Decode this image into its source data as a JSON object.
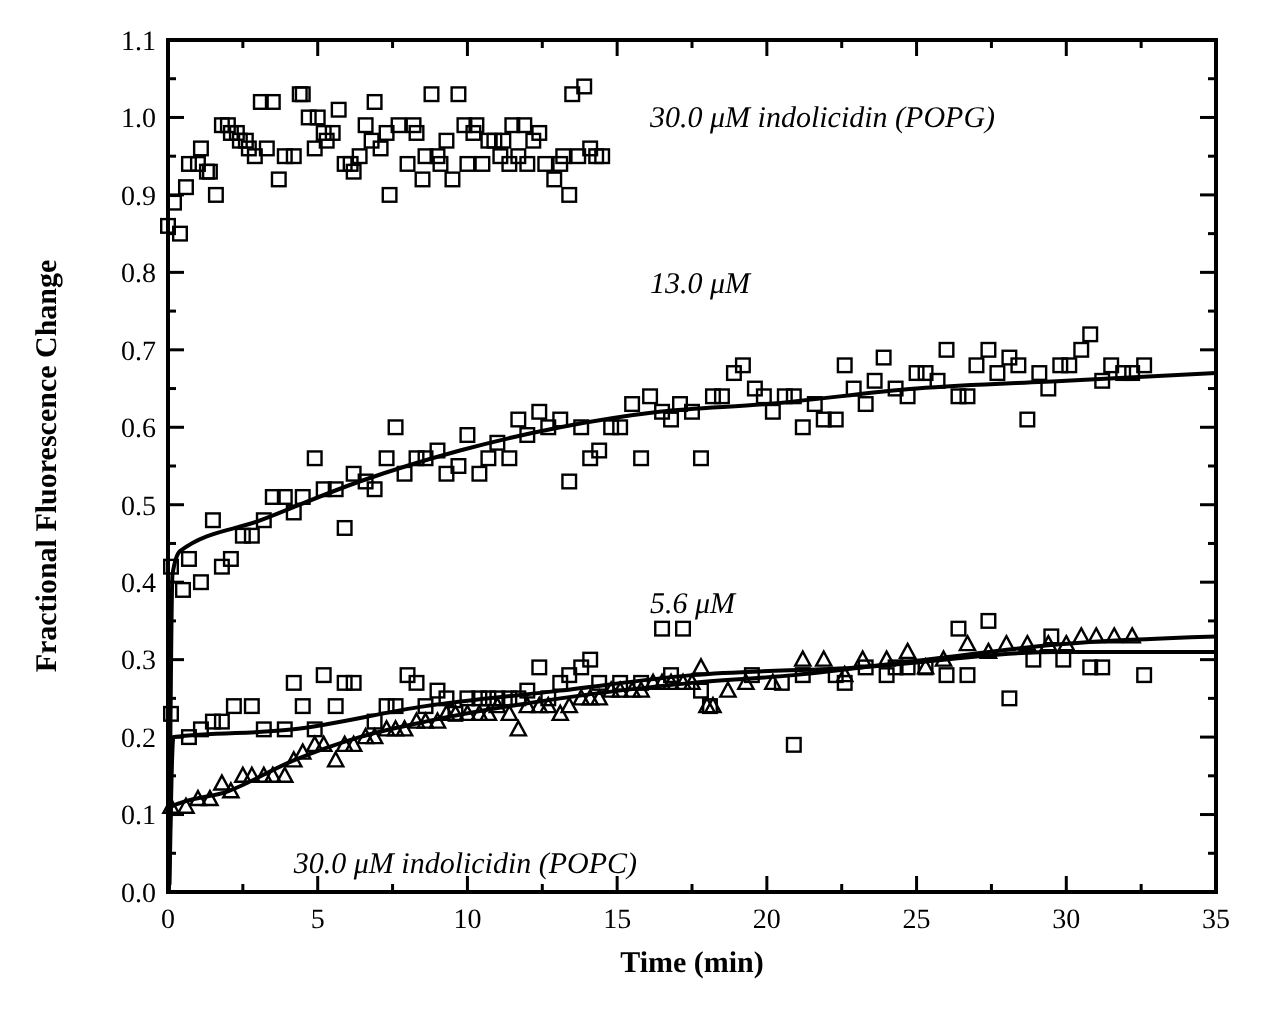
{
  "chart_data": {
    "type": "scatter",
    "xlabel": "Time (min)",
    "ylabel": "Fractional Fluorescence Change",
    "xlim": [
      0,
      35
    ],
    "ylim": [
      0,
      1.1
    ],
    "xticks": [
      0,
      {
        "value": 2.5,
        "label": null
      },
      5,
      {
        "value": 7.5,
        "label": null
      },
      10,
      {
        "value": 12.5,
        "label": null
      },
      15,
      {
        "value": 17.5,
        "label": null
      },
      20,
      {
        "value": 22.5,
        "label": null
      },
      25,
      {
        "value": 27.5,
        "label": null
      },
      30,
      {
        "value": 32.5,
        "label": null
      },
      35
    ],
    "yticks": [
      {
        "value": 0,
        "label": "0.0"
      },
      {
        "value": 0.05,
        "label": null
      },
      0.1,
      {
        "value": 0.15,
        "label": null
      },
      0.2,
      {
        "value": 0.25,
        "label": null
      },
      0.3,
      {
        "value": 0.35,
        "label": null
      },
      0.4,
      {
        "value": 0.45,
        "label": null
      },
      0.5,
      {
        "value": 0.55,
        "label": null
      },
      0.6,
      {
        "value": 0.65,
        "label": null
      },
      0.7,
      {
        "value": 0.75,
        "label": null
      },
      0.8,
      {
        "value": 0.85,
        "label": null
      },
      0.9,
      {
        "value": 0.95,
        "label": null
      },
      {
        "value": 1,
        "label": "1.0"
      },
      {
        "value": 1.05,
        "label": null
      },
      1.1
    ],
    "grid": false,
    "annotations": [
      "30.0 μM indolicidin (POPG)",
      "13.0 μM",
      "5.6 μM",
      "30.0 μM indolicidin (POPC)"
    ],
    "series": [
      {
        "marker": "square",
        "color": "#000000",
        "x": [
          0.0,
          0.4,
          0.2,
          0.6,
          0.7,
          1.0,
          1.1,
          1.3,
          1.4,
          1.6,
          1.8,
          2.0,
          2.1,
          2.3,
          2.4,
          2.6,
          2.7,
          2.9,
          3.1,
          3.3,
          3.5,
          3.7,
          3.9,
          4.2,
          4.4,
          4.5,
          4.7,
          4.9,
          5.0,
          5.2,
          5.3,
          5.5,
          5.7,
          5.9,
          6.1,
          6.2,
          6.4,
          6.6,
          6.8,
          6.9,
          7.1,
          7.3,
          7.4,
          7.7,
          8.0,
          8.2,
          8.3,
          8.5,
          8.6,
          8.8,
          9.0,
          9.1,
          9.3,
          9.5,
          9.7,
          9.9,
          10.0,
          10.2,
          10.3,
          10.5,
          10.7,
          10.9,
          11.1,
          11.2,
          11.4,
          11.5,
          11.7,
          11.9,
          12.0,
          12.2,
          12.4,
          12.6,
          12.9,
          13.1,
          13.2,
          13.4,
          13.5,
          13.9,
          13.7,
          14.1,
          14.3,
          14.5
        ],
        "values": [
          0.86,
          0.85,
          0.89,
          0.91,
          0.94,
          0.94,
          0.96,
          0.93,
          0.93,
          0.9,
          0.99,
          0.99,
          0.98,
          0.98,
          0.97,
          0.97,
          0.96,
          0.95,
          1.02,
          0.96,
          1.02,
          0.92,
          0.95,
          0.95,
          1.03,
          1.03,
          1.0,
          0.96,
          1.0,
          0.98,
          0.97,
          0.98,
          1.01,
          0.94,
          0.94,
          0.93,
          0.95,
          0.99,
          0.97,
          1.02,
          0.96,
          0.98,
          0.9,
          0.99,
          0.94,
          0.99,
          0.98,
          0.92,
          0.95,
          1.03,
          0.95,
          0.94,
          0.97,
          0.92,
          1.03,
          0.99,
          0.94,
          0.98,
          0.99,
          0.94,
          0.97,
          0.97,
          0.95,
          0.97,
          0.94,
          0.99,
          0.95,
          0.99,
          0.94,
          0.97,
          0.98,
          0.94,
          0.92,
          0.94,
          0.95,
          0.9,
          1.03,
          1.04,
          0.95,
          0.96,
          0.95,
          0.95
        ]
      },
      {
        "marker": "square",
        "color": "#000000",
        "x": [
          0.1,
          0.5,
          0.7,
          1.1,
          1.5,
          1.8,
          2.1,
          2.5,
          2.8,
          3.2,
          3.5,
          3.9,
          4.2,
          4.5,
          4.9,
          5.2,
          5.6,
          5.9,
          6.2,
          6.6,
          6.9,
          7.3,
          7.6,
          7.9,
          8.3,
          8.6,
          9.0,
          9.3,
          9.7,
          10.0,
          10.4,
          10.7,
          11.0,
          11.4,
          11.7,
          12.0,
          12.4,
          12.7,
          13.1,
          13.4,
          13.8,
          14.1,
          14.4,
          14.8,
          15.1,
          15.5,
          15.8,
          16.1,
          16.5,
          16.8,
          17.1,
          17.5,
          17.8,
          18.2,
          18.5,
          18.9,
          19.2,
          19.6,
          19.9,
          20.2,
          20.6,
          20.9,
          21.2,
          21.6,
          21.9,
          22.3,
          22.6,
          22.9,
          23.3,
          23.6,
          23.9,
          24.3,
          24.7,
          25.0,
          25.3,
          25.7,
          26.0,
          26.4,
          26.7,
          27.0,
          27.4,
          27.7,
          28.1,
          28.4,
          28.7,
          29.1,
          29.4,
          29.8,
          30.1,
          30.5,
          30.8,
          31.2,
          31.5,
          31.9,
          32.2,
          32.6
        ],
        "values": [
          0.42,
          0.39,
          0.43,
          0.4,
          0.48,
          0.42,
          0.43,
          0.46,
          0.46,
          0.48,
          0.51,
          0.51,
          0.49,
          0.51,
          0.56,
          0.52,
          0.52,
          0.47,
          0.54,
          0.53,
          0.52,
          0.56,
          0.6,
          0.54,
          0.56,
          0.56,
          0.57,
          0.54,
          0.55,
          0.59,
          0.54,
          0.56,
          0.58,
          0.56,
          0.61,
          0.59,
          0.62,
          0.6,
          0.61,
          0.53,
          0.6,
          0.56,
          0.57,
          0.6,
          0.6,
          0.63,
          0.56,
          0.64,
          0.62,
          0.61,
          0.63,
          0.62,
          0.56,
          0.64,
          0.64,
          0.67,
          0.68,
          0.65,
          0.64,
          0.62,
          0.64,
          0.64,
          0.6,
          0.63,
          0.61,
          0.61,
          0.68,
          0.65,
          0.63,
          0.66,
          0.69,
          0.65,
          0.64,
          0.67,
          0.67,
          0.66,
          0.7,
          0.64,
          0.64,
          0.68,
          0.7,
          0.67,
          0.69,
          0.68,
          0.61,
          0.67,
          0.65,
          0.68,
          0.68,
          0.7,
          0.72,
          0.66,
          0.68,
          0.67,
          0.67,
          0.68
        ]
      },
      {
        "marker": "square",
        "color": "#000000",
        "x": [
          0.1,
          0.7,
          1.1,
          1.5,
          1.8,
          2.2,
          2.8,
          3.2,
          3.9,
          4.2,
          4.5,
          4.9,
          5.2,
          5.6,
          5.9,
          6.2,
          6.9,
          7.3,
          7.6,
          8.0,
          8.3,
          8.6,
          9.0,
          9.3,
          9.6,
          10.0,
          10.4,
          10.7,
          11.0,
          11.4,
          11.7,
          12.0,
          12.4,
          12.7,
          13.1,
          13.4,
          13.8,
          14.1,
          14.4,
          15.1,
          15.8,
          16.5,
          17.2,
          16.8,
          17.8,
          18.1,
          19.5,
          20.5,
          20.9,
          21.2,
          22.3,
          22.6,
          23.3,
          24.0,
          24.3,
          24.7,
          25.3,
          26.0,
          26.4,
          26.7,
          27.4,
          28.1,
          28.9,
          29.5,
          29.9,
          30.8,
          31.2,
          32.6
        ],
        "values": [
          0.23,
          0.2,
          0.21,
          0.22,
          0.22,
          0.24,
          0.24,
          0.21,
          0.21,
          0.27,
          0.24,
          0.21,
          0.28,
          0.24,
          0.27,
          0.27,
          0.22,
          0.24,
          0.24,
          0.28,
          0.27,
          0.24,
          0.26,
          0.25,
          0.23,
          0.25,
          0.25,
          0.25,
          0.25,
          0.25,
          0.25,
          0.26,
          0.29,
          0.25,
          0.27,
          0.28,
          0.29,
          0.3,
          0.27,
          0.27,
          0.27,
          0.34,
          0.34,
          0.28,
          0.26,
          0.24,
          0.28,
          0.27,
          0.19,
          0.28,
          0.28,
          0.27,
          0.29,
          0.28,
          0.29,
          0.29,
          0.29,
          0.28,
          0.34,
          0.28,
          0.35,
          0.25,
          0.3,
          0.33,
          0.3,
          0.29,
          0.29,
          0.28
        ]
      },
      {
        "marker": "triangle",
        "color": "#000000",
        "x": [
          0.1,
          0.6,
          1.0,
          1.4,
          1.8,
          2.1,
          2.5,
          2.8,
          3.2,
          3.5,
          3.9,
          4.2,
          4.5,
          4.9,
          5.2,
          5.6,
          5.9,
          6.2,
          6.6,
          6.9,
          7.3,
          7.6,
          7.9,
          8.3,
          8.6,
          9.0,
          9.3,
          9.6,
          10.0,
          10.4,
          10.7,
          11.0,
          11.4,
          11.7,
          12.0,
          12.4,
          12.7,
          13.1,
          13.4,
          13.8,
          14.1,
          14.4,
          14.8,
          15.1,
          15.5,
          15.8,
          16.2,
          16.5,
          16.8,
          17.2,
          17.5,
          17.8,
          18.0,
          18.2,
          18.7,
          19.3,
          20.2,
          21.2,
          21.9,
          22.6,
          23.2,
          24.0,
          24.7,
          25.3,
          25.9,
          26.7,
          27.4,
          28.0,
          28.7,
          29.4,
          30.0,
          30.5,
          31.0,
          31.6,
          32.2
        ],
        "values": [
          0.11,
          0.11,
          0.12,
          0.12,
          0.14,
          0.13,
          0.15,
          0.15,
          0.15,
          0.15,
          0.15,
          0.17,
          0.18,
          0.19,
          0.19,
          0.17,
          0.19,
          0.19,
          0.2,
          0.2,
          0.21,
          0.21,
          0.21,
          0.22,
          0.22,
          0.22,
          0.23,
          0.23,
          0.23,
          0.23,
          0.23,
          0.24,
          0.23,
          0.21,
          0.24,
          0.24,
          0.24,
          0.23,
          0.24,
          0.25,
          0.25,
          0.25,
          0.26,
          0.26,
          0.26,
          0.26,
          0.27,
          0.27,
          0.27,
          0.27,
          0.27,
          0.29,
          0.24,
          0.24,
          0.26,
          0.27,
          0.27,
          0.3,
          0.3,
          0.28,
          0.3,
          0.3,
          0.31,
          0.29,
          0.3,
          0.32,
          0.31,
          0.32,
          0.32,
          0.32,
          0.32,
          0.33,
          0.33,
          0.33,
          0.33
        ]
      },
      {
        "type": "line",
        "marker": "none",
        "line_style": "solid",
        "color": "#000000",
        "x": [
          0.05,
          0.15,
          0.4,
          3.1,
          6.4,
          9.75,
          13.1,
          16.4,
          20,
          25,
          30,
          35
        ],
        "values": [
          0.06,
          0.41,
          0.44,
          0.48,
          0.53,
          0.57,
          0.6,
          0.62,
          0.63,
          0.65,
          0.66,
          0.67
        ]
      },
      {
        "type": "line",
        "marker": "none",
        "line_style": "solid",
        "color": "#000000",
        "x": [
          0.05,
          0.18,
          4.2,
          8.6,
          13.1,
          17.5,
          23.1,
          29.8,
          35
        ],
        "values": [
          0.01,
          0.2,
          0.21,
          0.24,
          0.26,
          0.28,
          0.29,
          0.31,
          0.31
        ]
      },
      {
        "type": "line",
        "marker": "none",
        "line_style": "solid",
        "color": "#000000",
        "x": [
          0.03,
          0.1,
          2.0,
          4.2,
          6.4,
          8.6,
          13.1,
          17.5,
          20.9,
          25.3,
          29.8,
          35
        ],
        "values": [
          0.0,
          0.11,
          0.13,
          0.17,
          0.2,
          0.22,
          0.25,
          0.27,
          0.28,
          0.3,
          0.32,
          0.33
        ]
      }
    ]
  }
}
